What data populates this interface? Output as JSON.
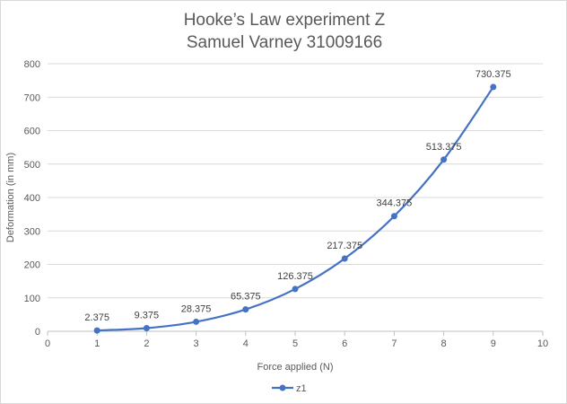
{
  "chart_data": {
    "type": "scatter",
    "title": [
      "Hooke’s Law experiment Z",
      "Samuel Varney 31009166"
    ],
    "xlabel": "Force applied (N)",
    "ylabel": "Deformation (in mm)",
    "xlim": [
      0,
      10
    ],
    "ylim": [
      0,
      800
    ],
    "x_ticks": [
      0,
      1,
      2,
      3,
      4,
      5,
      6,
      7,
      8,
      9,
      10
    ],
    "y_ticks": [
      0,
      100,
      200,
      300,
      400,
      500,
      600,
      700,
      800
    ],
    "grid": "horizontal",
    "smooth_lines": true,
    "legend_position": "bottom",
    "series": [
      {
        "name": "z1",
        "color": "#4472c4",
        "marker": "circle",
        "x": [
          1,
          2,
          3,
          4,
          5,
          6,
          7,
          8,
          9
        ],
        "y": [
          2.375,
          9.375,
          28.375,
          65.375,
          126.375,
          217.375,
          344.375,
          513.375,
          730.375
        ],
        "labels": [
          "2.375",
          "9.375",
          "28.375",
          "65.375",
          "126.375",
          "217.375",
          "344.375",
          "513.375",
          "730.375"
        ]
      }
    ]
  }
}
